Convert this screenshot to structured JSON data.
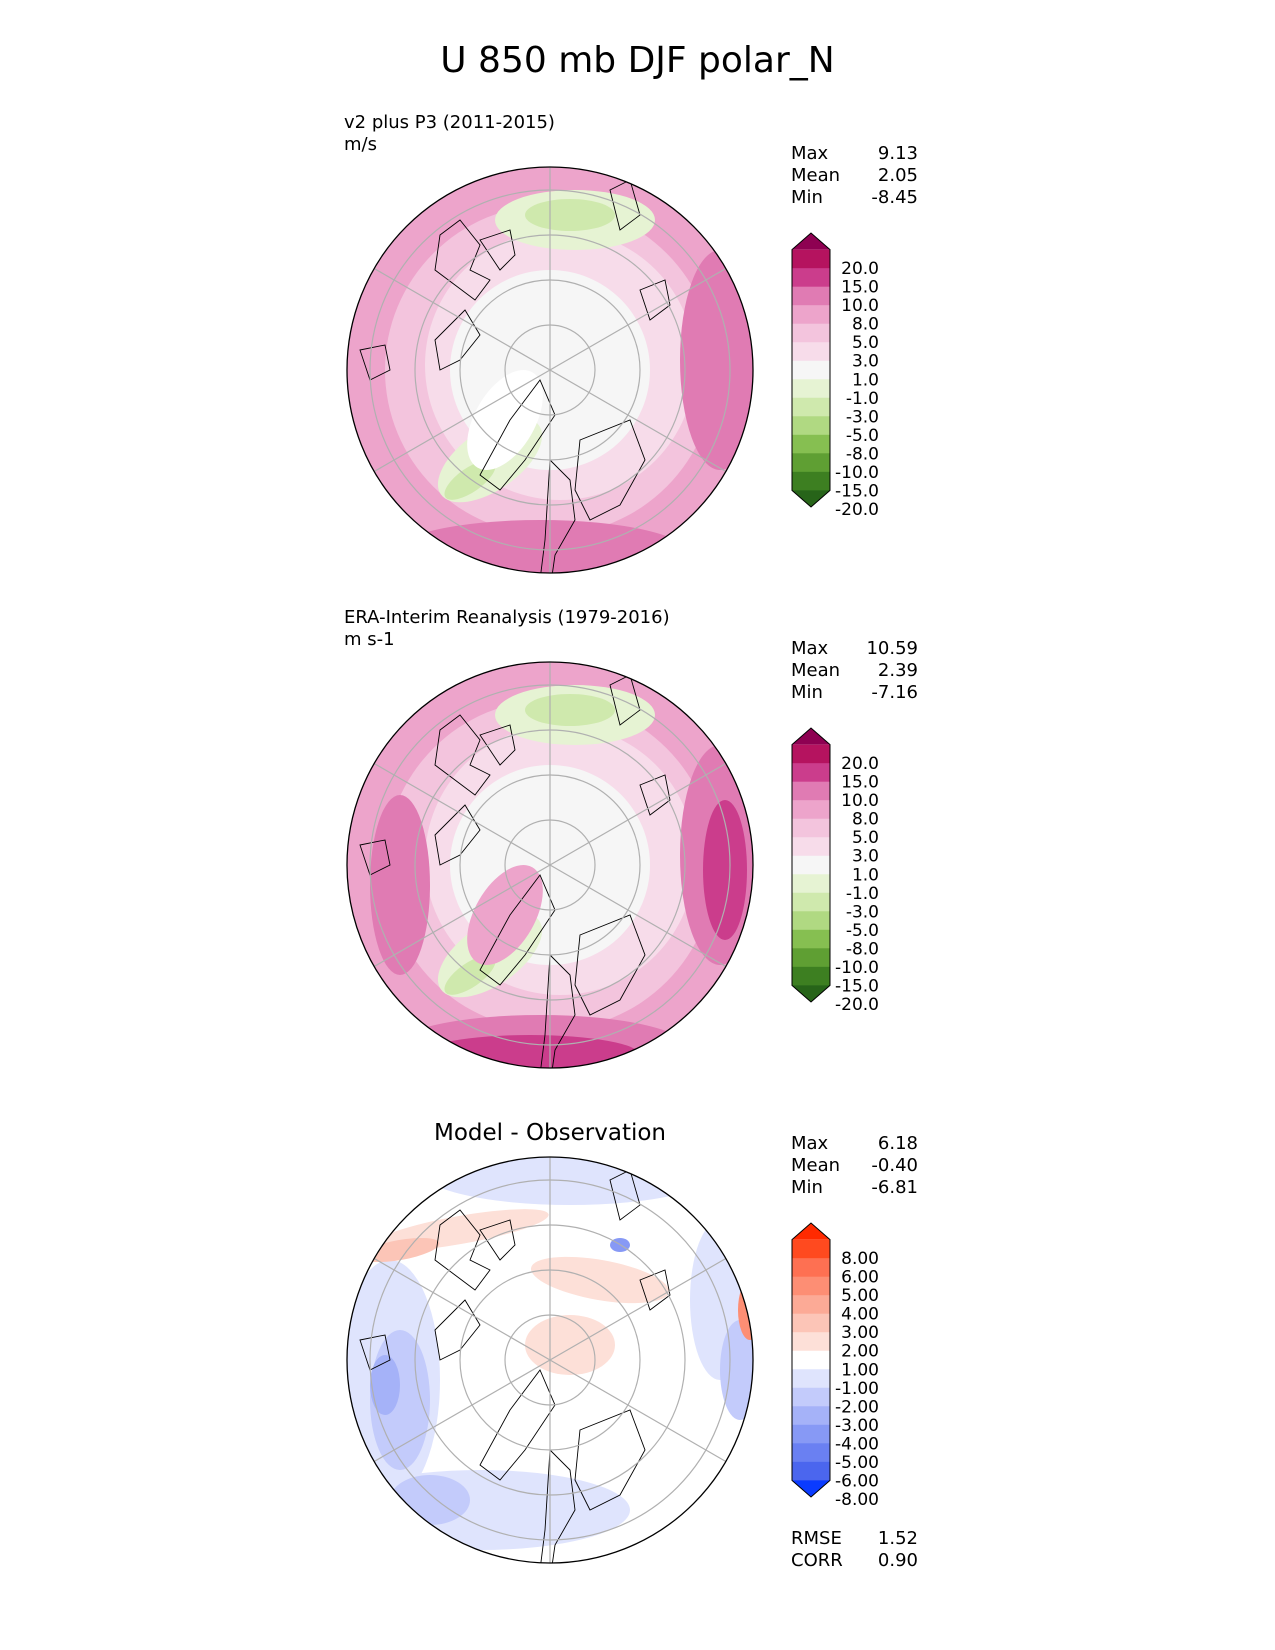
{
  "title": "U 850 mb DJF polar_N",
  "panels": [
    {
      "subtitle_line1": "v2 plus P3 (2011-2015)",
      "subtitle_line2": "m/s",
      "stats": [
        {
          "label": "Max",
          "value": "9.13"
        },
        {
          "label": "Mean",
          "value": "2.05"
        },
        {
          "label": "Min",
          "value": "-8.45"
        }
      ],
      "colorbar": {
        "ticks": [
          "20.0",
          "15.0",
          "10.0",
          "8.0",
          "5.0",
          "3.0",
          "1.0",
          "-1.0",
          "-3.0",
          "-5.0",
          "-8.0",
          "-10.0",
          "-15.0",
          "-20.0"
        ],
        "colors": [
          "#8e0152",
          "#b5135f",
          "#cb3d8c",
          "#e07bb3",
          "#eda4cb",
          "#f3c4dd",
          "#f7dcea",
          "#f6f6f6",
          "#e6f3d3",
          "#cfe9ad",
          "#b0d982",
          "#86bf51",
          "#5f9f33",
          "#3d7f21",
          "#276419"
        ]
      }
    },
    {
      "subtitle_line1": "ERA-Interim Reanalysis (1979-2016)",
      "subtitle_line2": "m s-1",
      "stats": [
        {
          "label": "Max",
          "value": "10.59"
        },
        {
          "label": "Mean",
          "value": "2.39"
        },
        {
          "label": "Min",
          "value": "-7.16"
        }
      ],
      "colorbar": {
        "ticks": [
          "20.0",
          "15.0",
          "10.0",
          "8.0",
          "5.0",
          "3.0",
          "1.0",
          "-1.0",
          "-3.0",
          "-5.0",
          "-8.0",
          "-10.0",
          "-15.0",
          "-20.0"
        ],
        "colors": [
          "#8e0152",
          "#b5135f",
          "#cb3d8c",
          "#e07bb3",
          "#eda4cb",
          "#f3c4dd",
          "#f7dcea",
          "#f6f6f6",
          "#e6f3d3",
          "#cfe9ad",
          "#b0d982",
          "#86bf51",
          "#5f9f33",
          "#3d7f21",
          "#276419"
        ]
      }
    },
    {
      "subtitle_center": "Model - Observation",
      "stats": [
        {
          "label": "Max",
          "value": "6.18"
        },
        {
          "label": "Mean",
          "value": "-0.40"
        },
        {
          "label": "Min",
          "value": "-6.81"
        }
      ],
      "colorbar": {
        "ticks": [
          "8.00",
          "6.00",
          "5.00",
          "4.00",
          "3.00",
          "2.00",
          "1.00",
          "-1.00",
          "-2.00",
          "-3.00",
          "-4.00",
          "-5.00",
          "-6.00",
          "-8.00"
        ],
        "colors": [
          "#ff2a00",
          "#ff4a1f",
          "#fe7052",
          "#fd8e74",
          "#fcaa96",
          "#fcc5b7",
          "#fde0d8",
          "#ffffff",
          "#dfe4fd",
          "#c3cbfb",
          "#a5b2f8",
          "#8799f5",
          "#6a80f2",
          "#4b66ee",
          "#0a3bff"
        ]
      },
      "extra_stats": [
        {
          "label": "RMSE",
          "value": "1.52"
        },
        {
          "label": "CORR",
          "value": "0.90"
        }
      ]
    }
  ],
  "chart_data": [
    {
      "type": "heatmap",
      "title": "v2 plus P3 (2011-2015)",
      "units": "m/s",
      "projection": "north polar stereographic",
      "stats": {
        "max": 9.13,
        "mean": 2.05,
        "min": -8.45
      },
      "levels": [
        -20.0,
        -15.0,
        -10.0,
        -8.0,
        -5.0,
        -3.0,
        -1.0,
        1.0,
        3.0,
        5.0,
        8.0,
        10.0,
        15.0,
        20.0
      ]
    },
    {
      "type": "heatmap",
      "title": "ERA-Interim Reanalysis (1979-2016)",
      "units": "m s-1",
      "projection": "north polar stereographic",
      "stats": {
        "max": 10.59,
        "mean": 2.39,
        "min": -7.16
      },
      "levels": [
        -20.0,
        -15.0,
        -10.0,
        -8.0,
        -5.0,
        -3.0,
        -1.0,
        1.0,
        3.0,
        5.0,
        8.0,
        10.0,
        15.0,
        20.0
      ]
    },
    {
      "type": "heatmap",
      "title": "Model - Observation",
      "projection": "north polar stereographic",
      "stats": {
        "max": 6.18,
        "mean": -0.4,
        "min": -6.81,
        "rmse": 1.52,
        "corr": 0.9
      },
      "levels": [
        -8.0,
        -6.0,
        -5.0,
        -4.0,
        -3.0,
        -2.0,
        -1.0,
        1.0,
        2.0,
        3.0,
        4.0,
        5.0,
        6.0,
        8.0
      ]
    }
  ]
}
